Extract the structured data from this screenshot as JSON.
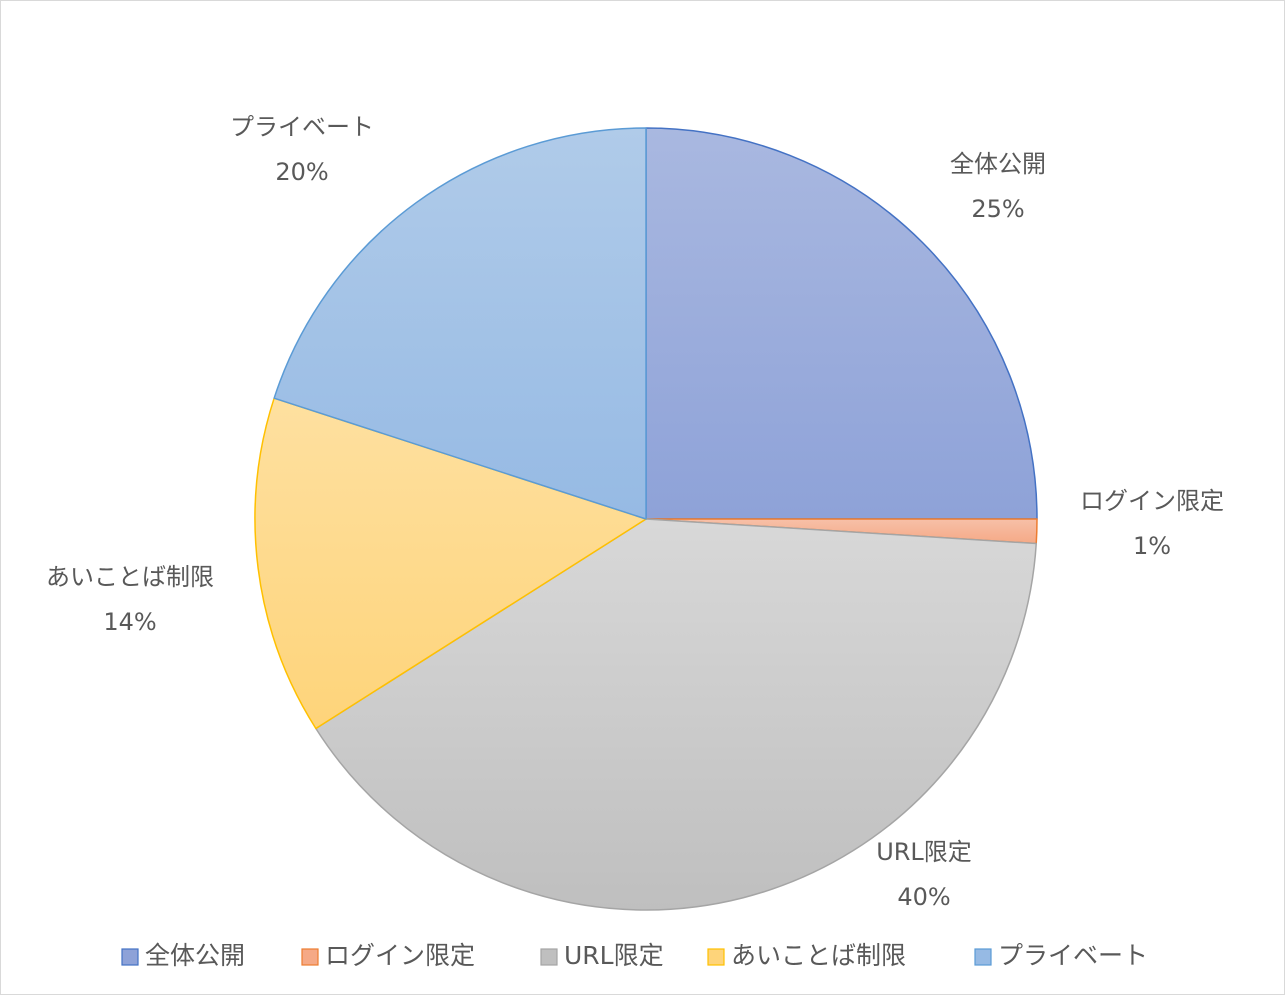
{
  "chart_data": {
    "type": "pie",
    "title": "",
    "categories": [
      "全体公開",
      "ログイン限定",
      "URL限定",
      "あいことば制限",
      "プライベート"
    ],
    "values": [
      25,
      1,
      40,
      14,
      20
    ],
    "labels": [
      "25%",
      "1%",
      "40%",
      "14%",
      "20%"
    ],
    "legend": {
      "placement": "bottom",
      "entries": [
        "全体公開",
        "ログイン限定",
        "URL限定",
        "あいことば制限",
        "プライベート"
      ]
    },
    "colors": {
      "fill_top": [
        "#a9b8e0",
        "#f7c0a8",
        "#d8d8d8",
        "#fee0a0",
        "#b0cbe9"
      ],
      "fill_bottom": [
        "#8ea2d8",
        "#f5a986",
        "#bfbfbf",
        "#fed47a",
        "#96bae4"
      ],
      "stroke": [
        "#4472c4",
        "#ed7d31",
        "#a5a5a5",
        "#ffc000",
        "#5b9bd5"
      ]
    }
  }
}
